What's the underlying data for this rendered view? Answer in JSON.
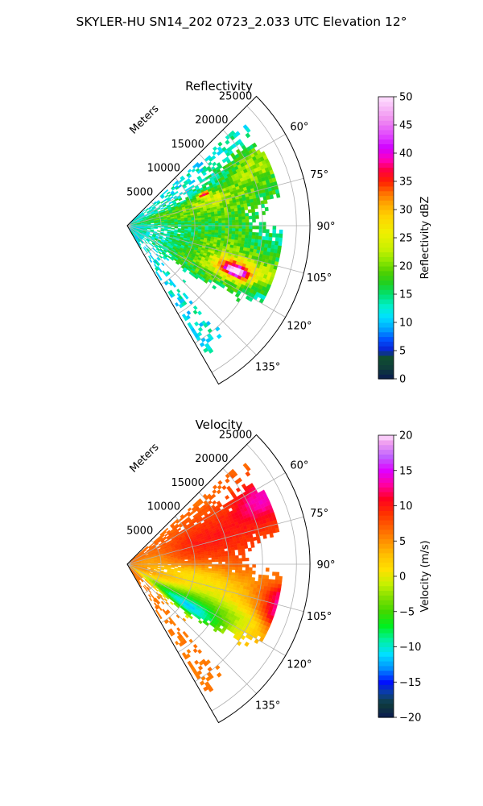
{
  "title": "SKYLER-HU  SN14_202  0723_2.033 UTC Elevation 12°",
  "chart_data": [
    {
      "type": "heatmap",
      "title": "Reflectivity",
      "projection": "polar sector",
      "radial_label": "Meters",
      "radial_ticks": [
        5000,
        10000,
        15000,
        20000,
        25000
      ],
      "radial_tick_labels": [
        "5000",
        "10000",
        "15000",
        "20000",
        "25000"
      ],
      "r_max": 27000,
      "azimuth_range": [
        45,
        150
      ],
      "azimuth_ticks": [
        60,
        75,
        90,
        105,
        120,
        135
      ],
      "azimuth_tick_labels": [
        "60°",
        "75°",
        "90°",
        "105°",
        "120°",
        "135°"
      ],
      "grid": true,
      "colorbar": {
        "label": "Reflectivity dBZ",
        "range": [
          0,
          50
        ],
        "ticks": [
          0,
          5,
          10,
          15,
          20,
          25,
          30,
          35,
          40,
          45,
          50
        ],
        "tick_labels": [
          "0",
          "5",
          "10",
          "15",
          "20",
          "25",
          "30",
          "35",
          "40",
          "45",
          "50"
        ],
        "stops": [
          {
            "v": 0,
            "c": "#0a1a50"
          },
          {
            "v": 2,
            "c": "#0f3d3a"
          },
          {
            "v": 4,
            "c": "#10502f"
          },
          {
            "v": 5,
            "c": "#0a1fd0"
          },
          {
            "v": 7,
            "c": "#0050ff"
          },
          {
            "v": 9,
            "c": "#00a8ff"
          },
          {
            "v": 11,
            "c": "#00e0ff"
          },
          {
            "v": 13,
            "c": "#00f0c8"
          },
          {
            "v": 15,
            "c": "#00e070"
          },
          {
            "v": 17,
            "c": "#20d020"
          },
          {
            "v": 19,
            "c": "#50d000"
          },
          {
            "v": 21,
            "c": "#90e800"
          },
          {
            "v": 23,
            "c": "#c8f000"
          },
          {
            "v": 26,
            "c": "#f0f000"
          },
          {
            "v": 29,
            "c": "#ffd000"
          },
          {
            "v": 31,
            "c": "#ffa800"
          },
          {
            "v": 33,
            "c": "#ff7000"
          },
          {
            "v": 35,
            "c": "#ff2000"
          },
          {
            "v": 37,
            "c": "#ff0040"
          },
          {
            "v": 39,
            "c": "#ff00c0"
          },
          {
            "v": 41,
            "c": "#d000ff"
          },
          {
            "v": 43,
            "c": "#e040ff"
          },
          {
            "v": 46,
            "c": "#f090f0"
          },
          {
            "v": 50,
            "c": "#ffe0ff"
          }
        ]
      },
      "cells": {
        "base": 12,
        "weights": [
          [
            0.4,
            0.4
          ],
          [
            0.25,
            1.8
          ],
          [
            0.3,
            3.0
          ],
          [
            0.15,
            6.0
          ]
        ],
        "amp": 10,
        "threshold": -1.5,
        "blobs": [
          {
            "az": 64,
            "r": 20500,
            "saz": 7,
            "sr": 3500,
            "a": 9,
            "m": 9
          },
          {
            "az": 72,
            "r": 13000,
            "saz": 4,
            "sr": 2500,
            "a": 7,
            "m": 6
          },
          {
            "az": 67,
            "r": 12000,
            "saz": 1.2,
            "sr": 600,
            "a": 22,
            "m": 0
          },
          {
            "az": 82,
            "r": 16000,
            "saz": 10,
            "sr": 6000,
            "a": 6,
            "m": 4
          },
          {
            "az": 76,
            "r": 6000,
            "saz": 8,
            "sr": 4000,
            "a": 6,
            "m": 3
          },
          {
            "az": 102,
            "r": 14000,
            "saz": 6,
            "sr": 5000,
            "a": 7,
            "m": 5
          },
          {
            "az": 111,
            "r": 17000,
            "saz": 4,
            "sr": 2600,
            "a": 16,
            "m": 6
          },
          {
            "az": 112,
            "r": 17000,
            "saz": 1.8,
            "sr": 1200,
            "a": 22,
            "m": 0
          },
          {
            "az": 116,
            "r": 13000,
            "saz": 5,
            "sr": 5500,
            "a": 7,
            "m": 5
          },
          {
            "az": 108,
            "r": 24000,
            "saz": 4,
            "sr": 3000,
            "a": 9,
            "m": 6
          },
          {
            "az": 125,
            "r": 12000,
            "saz": 4,
            "sr": 4000,
            "a": 3,
            "m": 4
          }
        ],
        "gaps": [
          {
            "az": 84,
            "r": 23500,
            "saz": 5,
            "sr": 4500,
            "d": 6
          },
          {
            "az": 128,
            "r": 16000,
            "saz": 6,
            "sr": 6000,
            "d": 5
          },
          {
            "az": 58,
            "r": 23000,
            "saz": 5,
            "sr": 5000,
            "d": 5
          }
        ]
      }
    },
    {
      "type": "heatmap",
      "title": "Velocity",
      "projection": "polar sector",
      "radial_label": "Meters",
      "radial_ticks": [
        5000,
        10000,
        15000,
        20000,
        25000
      ],
      "radial_tick_labels": [
        "5000",
        "10000",
        "15000",
        "20000",
        "25000"
      ],
      "r_max": 27000,
      "azimuth_range": [
        45,
        150
      ],
      "azimuth_ticks": [
        60,
        75,
        90,
        105,
        120,
        135
      ],
      "azimuth_tick_labels": [
        "60°",
        "75°",
        "90°",
        "105°",
        "120°",
        "135°"
      ],
      "grid": true,
      "colorbar": {
        "label": "Velocity (m/s)",
        "range": [
          -20,
          20
        ],
        "ticks": [
          -20,
          -15,
          -10,
          -5,
          0,
          5,
          10,
          15,
          20
        ],
        "tick_labels": [
          "−20",
          "−15",
          "−10",
          "−5",
          "0",
          "5",
          "10",
          "15",
          "20"
        ],
        "stops": [
          {
            "v": -20,
            "c": "#0a1a50"
          },
          {
            "v": -18,
            "c": "#0f3d3a"
          },
          {
            "v": -16.5,
            "c": "#0a40a0"
          },
          {
            "v": -15,
            "c": "#0010ff"
          },
          {
            "v": -13,
            "c": "#0090ff"
          },
          {
            "v": -11,
            "c": "#00e0ff"
          },
          {
            "v": -9,
            "c": "#00f0a0"
          },
          {
            "v": -7,
            "c": "#00f020"
          },
          {
            "v": -5,
            "c": "#40d800"
          },
          {
            "v": -3,
            "c": "#80e000"
          },
          {
            "v": -1,
            "c": "#c8f000"
          },
          {
            "v": 1,
            "c": "#ffe000"
          },
          {
            "v": 3,
            "c": "#ffc000"
          },
          {
            "v": 5,
            "c": "#ff9000"
          },
          {
            "v": 7,
            "c": "#ff6000"
          },
          {
            "v": 9,
            "c": "#ff3000"
          },
          {
            "v": 11,
            "c": "#ff0020"
          },
          {
            "v": 13,
            "c": "#ff00a0"
          },
          {
            "v": 15,
            "c": "#e000ff"
          },
          {
            "v": 17,
            "c": "#c060ff"
          },
          {
            "v": 19,
            "c": "#f0a0f0"
          },
          {
            "v": 20,
            "c": "#ffe0ff"
          }
        ]
      },
      "cells": {
        "base": 6,
        "weights": [
          [
            0.4,
            0.4
          ],
          [
            0.25,
            1.8
          ],
          [
            0.3,
            3.0
          ],
          [
            0.15,
            6.0
          ]
        ],
        "amp": 1.5,
        "threshold": -1.5,
        "blobs": [
          {
            "az": 72,
            "r": 13000,
            "saz": 12,
            "sr": 8000,
            "a": 4,
            "m": 4
          },
          {
            "az": 63,
            "r": 22000,
            "saz": 6,
            "sr": 3000,
            "a": 6,
            "m": 6
          },
          {
            "az": 108,
            "r": 24500,
            "saz": 4,
            "sr": 2500,
            "a": 10,
            "m": 8
          },
          {
            "az": 101,
            "r": 24000,
            "saz": 3,
            "sr": 2500,
            "a": 6,
            "m": 5
          },
          {
            "az": 104,
            "r": 13000,
            "saz": 7,
            "sr": 5000,
            "a": -4,
            "m": 5
          },
          {
            "az": 118,
            "r": 12000,
            "saz": 6,
            "sr": 6000,
            "a": -10,
            "m": 6
          },
          {
            "az": 125,
            "r": 10000,
            "saz": 4,
            "sr": 5000,
            "a": -12,
            "m": 4
          },
          {
            "az": 113,
            "r": 19500,
            "saz": 3,
            "sr": 2000,
            "a": -2,
            "m": 6
          },
          {
            "az": 97,
            "r": 8000,
            "saz": 6,
            "sr": 4000,
            "a": -3,
            "m": 0
          },
          {
            "az": 78,
            "r": 3500,
            "saz": 10,
            "sr": 2500,
            "a": -3,
            "m": 2
          }
        ],
        "gaps": [
          {
            "az": 84,
            "r": 23500,
            "saz": 5,
            "sr": 4500,
            "d": 6
          },
          {
            "az": 128,
            "r": 16000,
            "saz": 6,
            "sr": 6000,
            "d": 5
          },
          {
            "az": 58,
            "r": 23000,
            "saz": 5,
            "sr": 5000,
            "d": 5
          }
        ]
      }
    }
  ]
}
